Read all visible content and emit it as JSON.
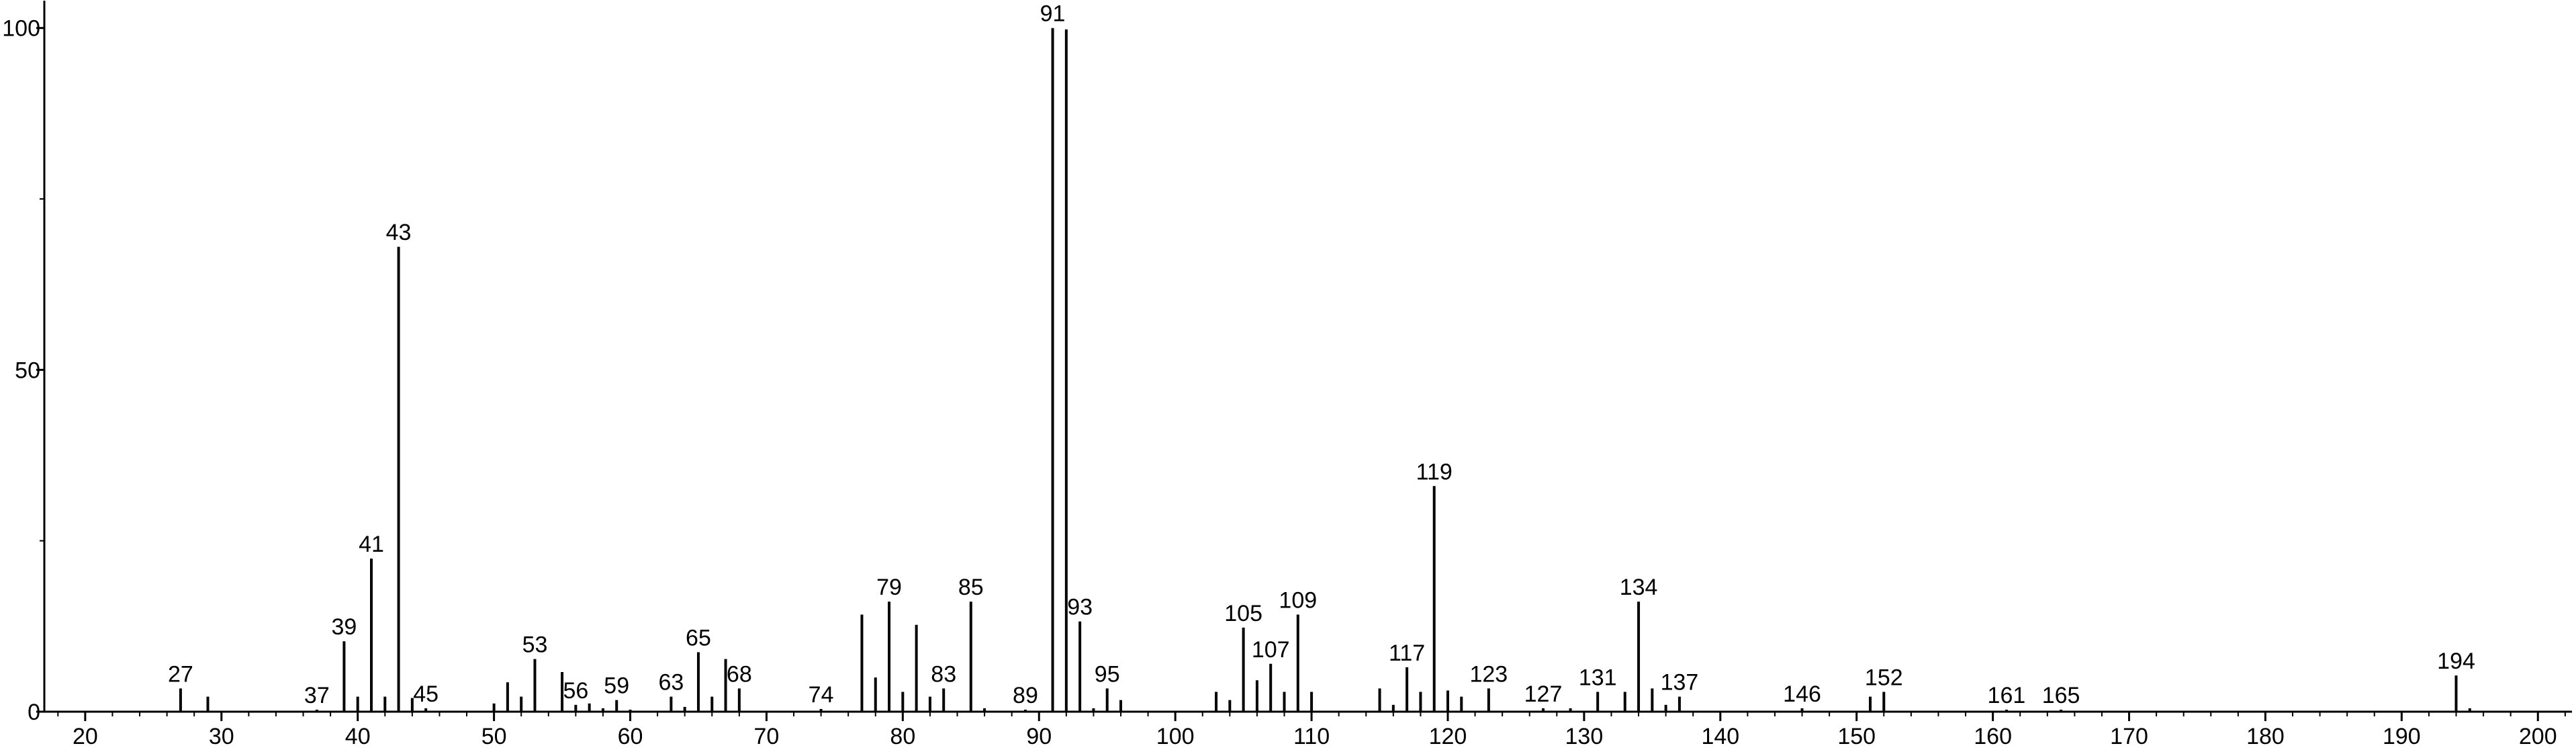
{
  "chart_data": {
    "type": "stem",
    "color": "#000000",
    "x": [
      27,
      29,
      37,
      39,
      40,
      41,
      42,
      43,
      44,
      45,
      50,
      51,
      52,
      53,
      55,
      56,
      57,
      58,
      59,
      60,
      63,
      64,
      65,
      66,
      67,
      68,
      74,
      77,
      78,
      79,
      80,
      81,
      82,
      83,
      85,
      86,
      89,
      91,
      92,
      93,
      94,
      95,
      96,
      103,
      104,
      105,
      106,
      107,
      108,
      109,
      110,
      115,
      116,
      117,
      118,
      119,
      120,
      121,
      123,
      127,
      129,
      131,
      133,
      134,
      135,
      136,
      137,
      146,
      151,
      152,
      161,
      165,
      194,
      195
    ],
    "values": [
      3.4,
      2.2,
      0.3,
      10.3,
      2.2,
      22.4,
      2.2,
      68,
      2,
      0.5,
      1.2,
      4.3,
      2.2,
      7.7,
      5.8,
      1,
      1.2,
      0.5,
      1.7,
      0.3,
      2.2,
      0.7,
      8.7,
      2.2,
      7.7,
      3.4,
      0.4,
      14.2,
      5,
      16.1,
      2.9,
      12.7,
      2.2,
      3.4,
      16.1,
      0.5,
      0.3,
      100,
      99.8,
      13.2,
      0.5,
      3.4,
      1.7,
      2.9,
      1.7,
      12.3,
      4.6,
      7,
      2.9,
      14.2,
      2.9,
      3.4,
      1,
      6.5,
      2.9,
      33,
      3.1,
      2.2,
      3.4,
      0.5,
      0.5,
      2.9,
      2.9,
      16.1,
      3.4,
      1,
      2.2,
      0.5,
      2.2,
      2.9,
      0.3,
      0.3,
      5.3,
      0.5
    ],
    "peak_labels": [
      27,
      null,
      37,
      39,
      null,
      41,
      null,
      43,
      null,
      45,
      null,
      null,
      null,
      53,
      null,
      56,
      null,
      null,
      59,
      null,
      63,
      null,
      65,
      null,
      null,
      68,
      74,
      null,
      null,
      79,
      null,
      null,
      null,
      83,
      85,
      null,
      89,
      91,
      null,
      93,
      null,
      95,
      null,
      null,
      null,
      105,
      null,
      107,
      null,
      109,
      null,
      null,
      null,
      117,
      null,
      119,
      null,
      null,
      123,
      127,
      null,
      131,
      null,
      134,
      null,
      null,
      137,
      146,
      null,
      152,
      161,
      165,
      194,
      null
    ],
    "xlim": [
      17,
      202.5
    ],
    "ylim": [
      0,
      104
    ],
    "xticks": [
      20,
      30,
      40,
      50,
      60,
      70,
      80,
      90,
      100,
      110,
      120,
      130,
      140,
      150,
      160,
      170,
      180,
      190,
      200
    ],
    "xminor_ticks": [
      18,
      22,
      24,
      26,
      28,
      32,
      34,
      36,
      38,
      42,
      44,
      46,
      48,
      52,
      54,
      56,
      58,
      62,
      64,
      66,
      68,
      72,
      74,
      76,
      78,
      82,
      84,
      86,
      88,
      92,
      94,
      96,
      98,
      102,
      104,
      106,
      108,
      112,
      114,
      116,
      118,
      122,
      124,
      126,
      128,
      132,
      134,
      136,
      138,
      142,
      144,
      146,
      148,
      152,
      154,
      156,
      158,
      162,
      164,
      166,
      168,
      172,
      174,
      176,
      178,
      182,
      184,
      186,
      188,
      192,
      194,
      196,
      198,
      202
    ],
    "yticks": [
      0,
      50,
      100
    ],
    "yminor_ticks": [
      25,
      75
    ]
  }
}
